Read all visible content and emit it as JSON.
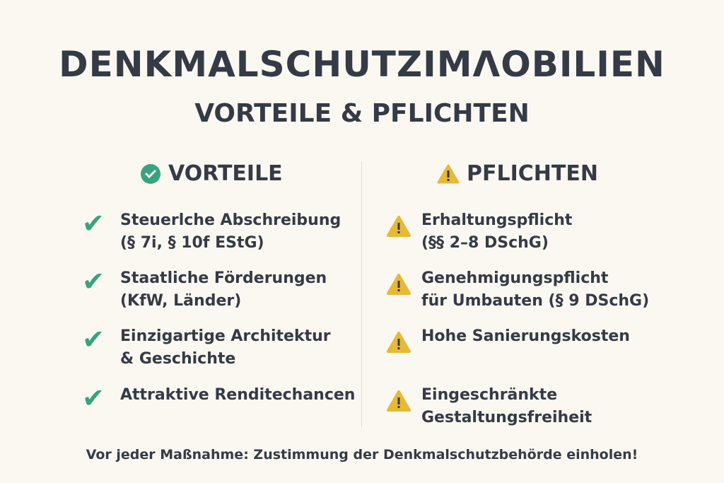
{
  "title": "DENKMALSCHUTZIMΛOBILIEN",
  "subtitle": "VORTEILE & PFLICHTEN",
  "colors": {
    "text": "#343b47",
    "green": "#37a47f",
    "yellow": "#e8b934",
    "background": "#fbf8f1"
  },
  "vorteile": {
    "heading": "VORTEILE",
    "icon": "check-circle-icon",
    "items": [
      {
        "line1": "Steuerlche Abschreibung",
        "line2": "(§ 7i, § 10f EStG)"
      },
      {
        "line1": "Staatliche Förderungen",
        "line2": "(KfW, Länder)"
      },
      {
        "line1": "Einzigartige Architektur",
        "line2": "& Geschichte"
      },
      {
        "line1": "Attraktive Renditechancen",
        "line2": ""
      }
    ]
  },
  "pflichten": {
    "heading": "PFLICHTEN",
    "icon": "warning-icon",
    "items": [
      {
        "line1": "Erhaltungspflicht",
        "line2": "(§§ 2–8 DSchG)"
      },
      {
        "line1": "Genehmigungspflicht",
        "line2": "für Umbauten (§ 9 DSchG)"
      },
      {
        "line1": "Hohe Sanierungskosten",
        "line2": ""
      },
      {
        "line1": "Eingeschränkte",
        "line2": "Gestaltungsfreiheit"
      }
    ]
  },
  "footer": "Vor jeder Maßnahme: Zustimmung der Denkmalschutzbehörde einholen!"
}
